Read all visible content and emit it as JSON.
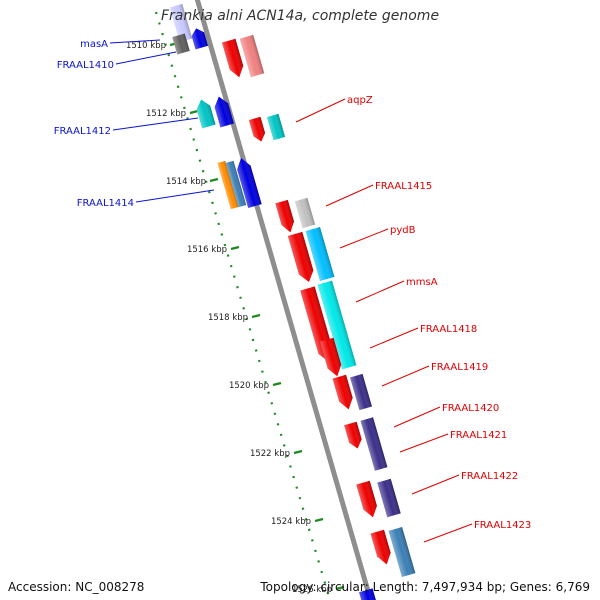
{
  "title": "Frankia alni ACN14a, complete genome",
  "footer": {
    "accession": "Accession: NC_008278",
    "topology": "Topology: circular; Length: 7,497,934 bp; Genes: 6,769"
  },
  "colors": {
    "backbone": "#8e8e8e",
    "ruler": "#1f8a1f",
    "forward_label": "#0b14cc",
    "reverse_label": "#e00000"
  },
  "ruler_ticks": [
    "1510 kbp",
    "1512 kbp",
    "1514 kbp",
    "1516 kbp",
    "1518 kbp",
    "1520 kbp",
    "1522 kbp",
    "1524 kbp",
    "1526 kbp"
  ],
  "forward_labels": [
    "masA",
    "FRAAL1410",
    "FRAAL1412",
    "FRAAL1414"
  ],
  "reverse_labels": [
    "aqpZ",
    "FRAAL1415",
    "pydB",
    "mmsA",
    "FRAAL1418",
    "FRAAL1419",
    "FRAAL1420",
    "FRAAL1421",
    "FRAAL1422",
    "FRAAL1423"
  ]
}
